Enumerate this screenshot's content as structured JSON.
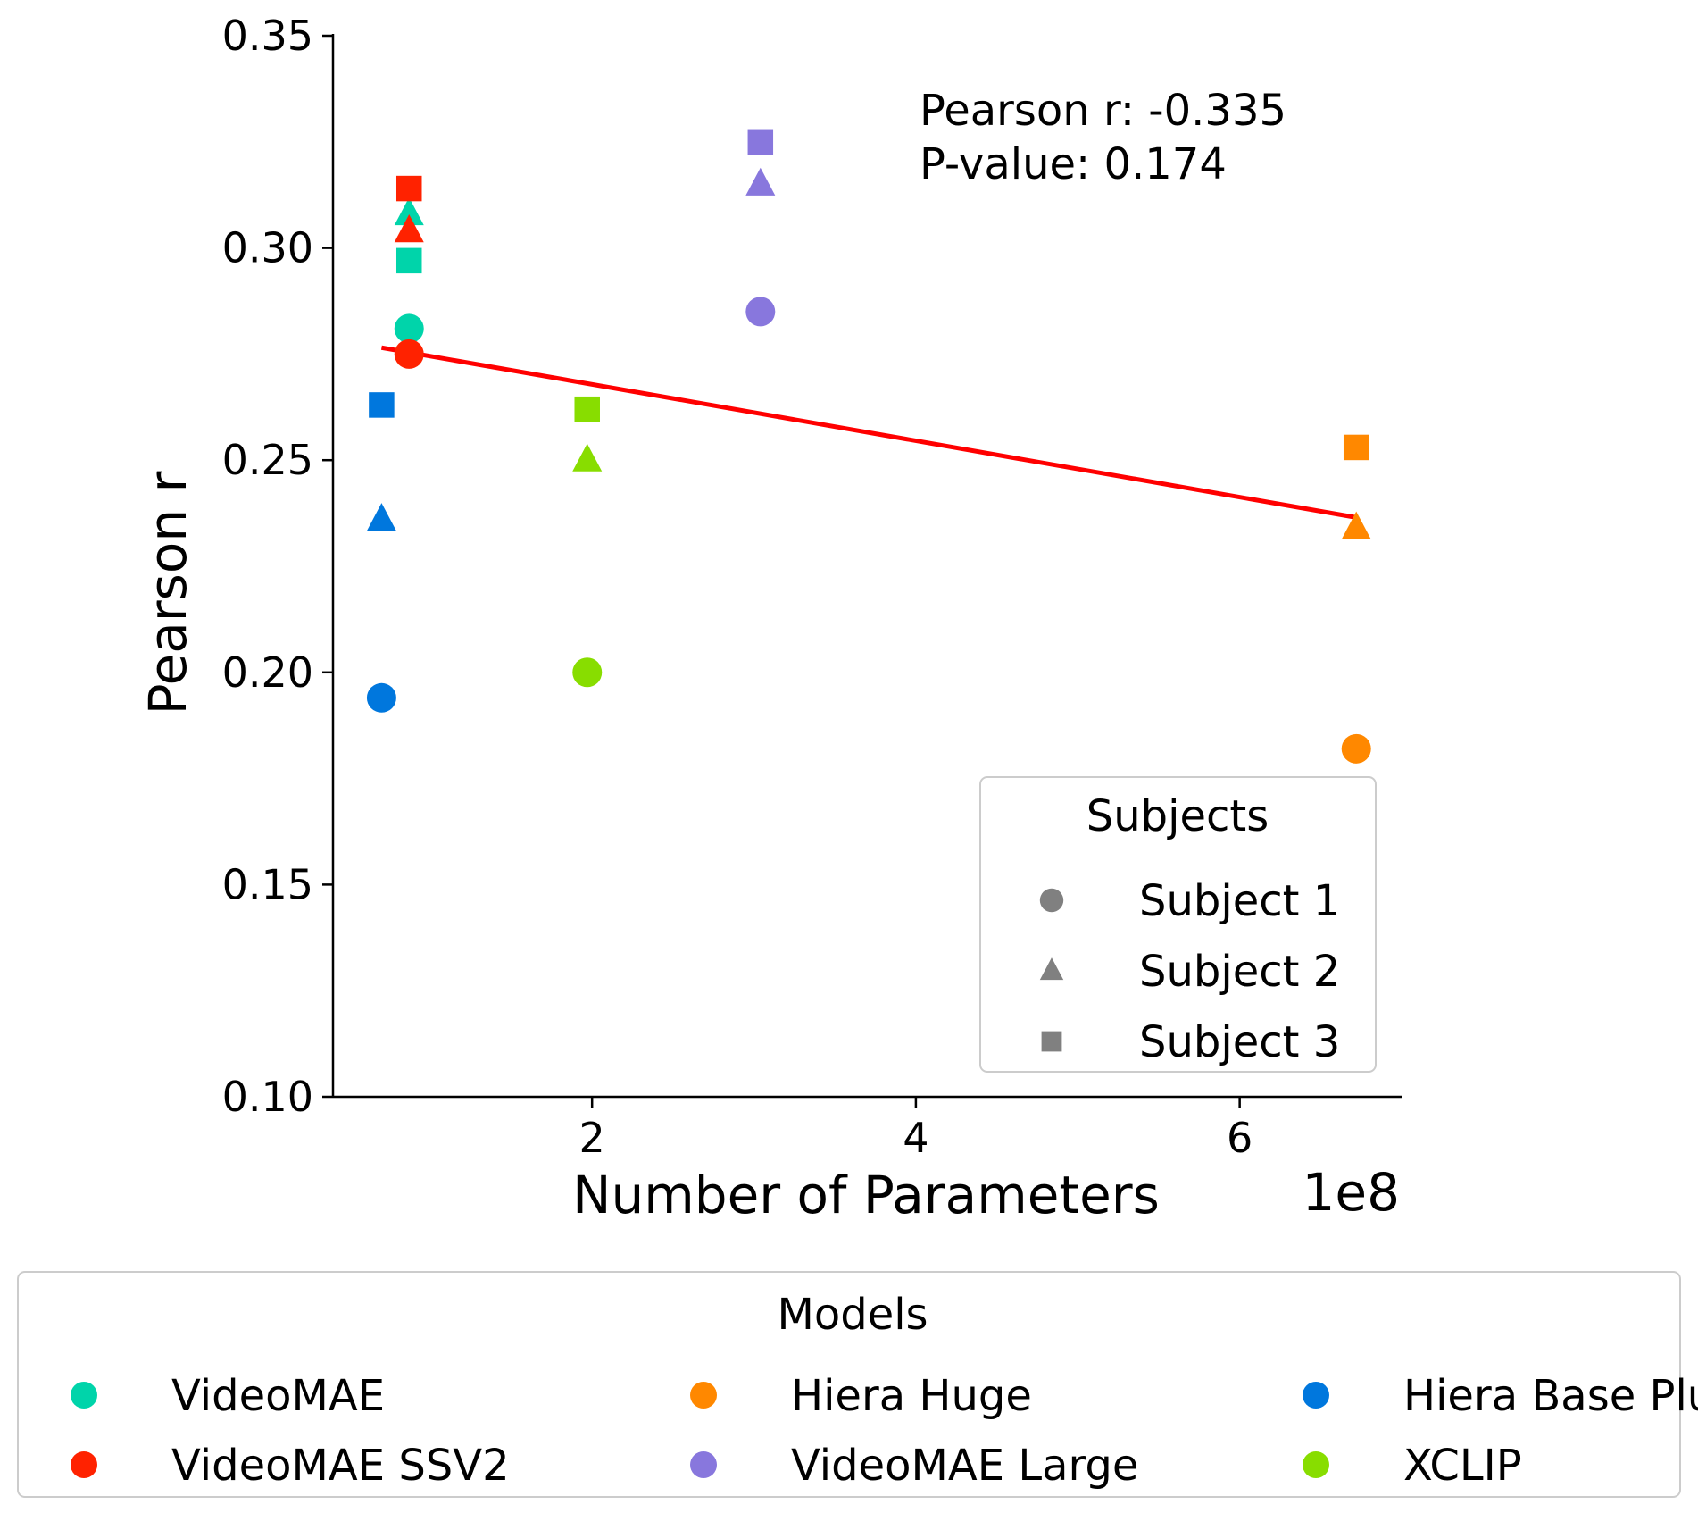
{
  "chart_data": {
    "type": "scatter",
    "xlabel": "Number of Parameters",
    "x_offset_label": "1e8",
    "ylabel": "Pearson r",
    "xlim": [
      0.4,
      7.0
    ],
    "ylim": [
      0.1,
      0.35
    ],
    "x_ticks": [
      2,
      4,
      6
    ],
    "x_tick_labels": [
      "2",
      "4",
      "6"
    ],
    "y_ticks": [
      0.1,
      0.15,
      0.2,
      0.25,
      0.3,
      0.35
    ],
    "y_tick_labels": [
      "0.10",
      "0.15",
      "0.20",
      "0.25",
      "0.30",
      "0.35"
    ],
    "grid": false,
    "annotation": [
      "Pearson r: -0.335",
      "P-value: 0.174"
    ],
    "trend_line": {
      "color": "#ff0000",
      "x": [
        0.7,
        6.72
      ],
      "y": [
        0.2765,
        0.2365
      ]
    },
    "series": [
      {
        "name": "VideoMAE",
        "color": "#00d4aa",
        "x": 0.87,
        "values": [
          0.281,
          0.308,
          0.297
        ]
      },
      {
        "name": "VideoMAE SSV2",
        "color": "#ff2200",
        "x": 0.87,
        "values": [
          0.275,
          0.304,
          0.314
        ]
      },
      {
        "name": "Hiera Huge",
        "color": "#ff8800",
        "x": 6.72,
        "values": [
          0.182,
          0.234,
          0.253
        ]
      },
      {
        "name": "VideoMAE Large",
        "color": "#8877dd",
        "x": 3.04,
        "values": [
          0.285,
          0.315,
          0.325
        ]
      },
      {
        "name": "Hiera Base Plus",
        "color": "#0077dd",
        "x": 0.7,
        "values": [
          0.194,
          0.236,
          0.263
        ]
      },
      {
        "name": "XCLIP",
        "color": "#88dd00",
        "x": 1.97,
        "values": [
          0.2,
          0.25,
          0.262
        ]
      }
    ],
    "subjects_legend": {
      "title": "Subjects",
      "location": "lower-right",
      "entries": [
        {
          "label": "Subject 1",
          "marker": "circle"
        },
        {
          "label": "Subject 2",
          "marker": "triangle"
        },
        {
          "label": "Subject 3",
          "marker": "square"
        }
      ],
      "marker_color": "#808080"
    },
    "models_legend": {
      "title": "Models",
      "location": "below"
    }
  }
}
